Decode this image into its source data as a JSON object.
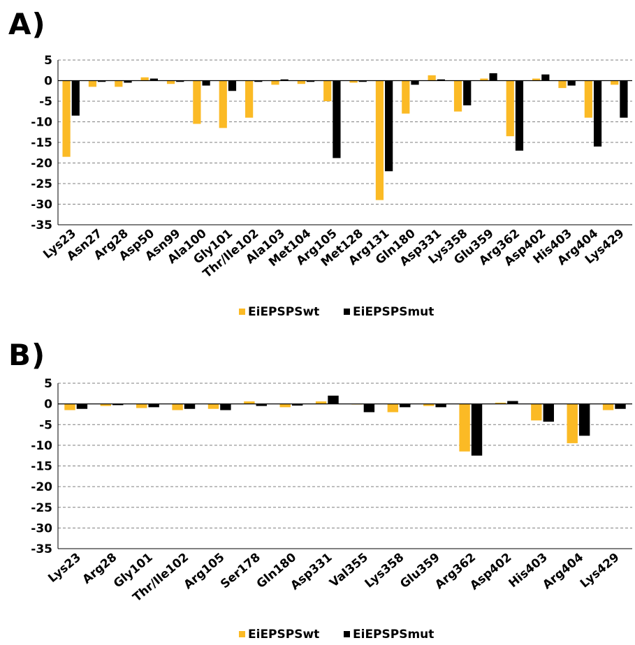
{
  "panels": {
    "a_label": "A)",
    "b_label": "B)"
  },
  "colors": {
    "wt": "#FBBA25",
    "mut": "#000000",
    "grid": "#7f7f7f",
    "axis": "#000000"
  },
  "chart_data": [
    {
      "type": "bar",
      "panel": "A)",
      "categories": [
        "Lys23",
        "Asn27",
        "Arg28",
        "Asp50",
        "Asn99",
        "Ala100",
        "Gly101",
        "Thr/Ile102",
        "Ala103",
        "Met104",
        "Arg105",
        "Met128",
        "Arg131",
        "Gln180",
        "Asp331",
        "Lys358",
        "Glu359",
        "Arg362",
        "Asp402",
        "His403",
        "Arg404",
        "Lys429"
      ],
      "series": [
        {
          "name": "EiEPSPSwt",
          "values": [
            -18.5,
            -1.5,
            -1.5,
            0.8,
            -0.8,
            -10.5,
            -11.5,
            -9.0,
            -1.0,
            -0.8,
            -5.0,
            -0.5,
            -29.0,
            -8.0,
            1.3,
            -7.5,
            0.5,
            -13.5,
            0.5,
            -1.8,
            -9.0,
            -1.0
          ]
        },
        {
          "name": "EiEPSPSmut",
          "values": [
            -8.5,
            -0.3,
            -0.5,
            0.5,
            -0.3,
            -1.2,
            -2.5,
            -0.3,
            0.3,
            -0.3,
            -18.8,
            -0.3,
            -22.0,
            -1.0,
            0.3,
            -6.0,
            1.8,
            -17.0,
            1.5,
            -1.2,
            -16.0,
            -9.0
          ]
        }
      ],
      "yticks": [
        "5",
        "0",
        "-5",
        "-10",
        "-15",
        "-20",
        "-25",
        "-30",
        "-35"
      ],
      "ylim": [
        -35,
        5
      ],
      "grid": true,
      "legend": "bottom-center"
    },
    {
      "type": "bar",
      "panel": "B)",
      "categories": [
        "Lys23",
        "Arg28",
        "Gly101",
        "Thr/Ile102",
        "Arg105",
        "Ser178",
        "Gln180",
        "Asp331",
        "Val355",
        "Lys358",
        "Glu359",
        "Arg362",
        "Asp402",
        "His403",
        "Arg404",
        "Lys429"
      ],
      "series": [
        {
          "name": "EiEPSPSwt",
          "values": [
            -1.5,
            -0.5,
            -1.0,
            -1.5,
            -1.2,
            0.6,
            -0.8,
            0.6,
            0,
            -2.0,
            -0.5,
            -11.5,
            0.3,
            -4.0,
            -9.5,
            -1.5
          ]
        },
        {
          "name": "EiEPSPSmut",
          "values": [
            -1.2,
            -0.3,
            -0.8,
            -1.2,
            -1.5,
            -0.5,
            -0.4,
            2.0,
            -2.0,
            -0.8,
            -0.8,
            -12.5,
            0.7,
            -4.3,
            -7.7,
            -1.2
          ]
        }
      ],
      "yticks": [
        "5",
        "0",
        "-5",
        "-10",
        "-15",
        "-20",
        "-25",
        "-30",
        "-35"
      ],
      "ylim": [
        -35,
        5
      ],
      "grid": true,
      "legend": "bottom-center"
    }
  ]
}
